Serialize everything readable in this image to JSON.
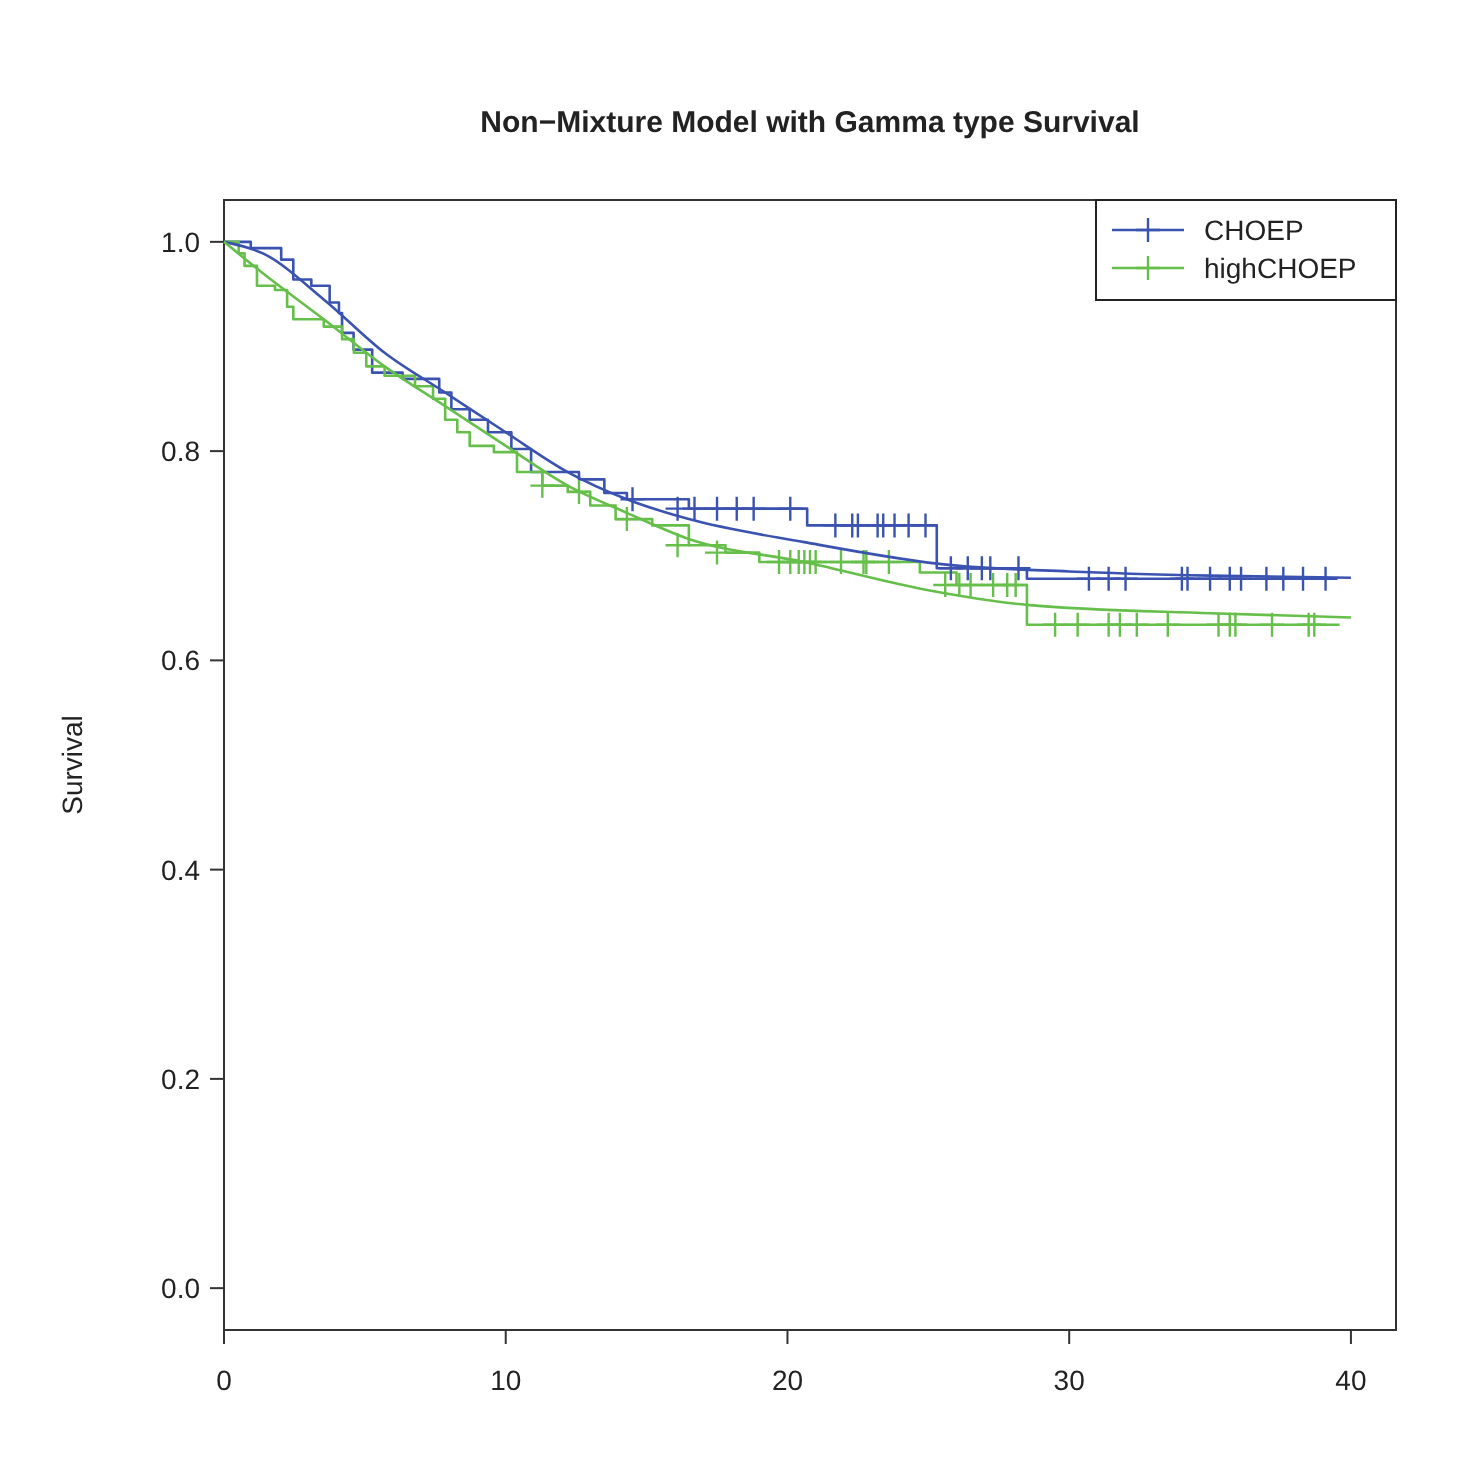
{
  "chart_data": {
    "type": "step",
    "title": "Non−Mixture Model with Gamma type Survival",
    "ylabel": "Survival",
    "xlim": [
      0,
      41.6
    ],
    "xticks": [
      0,
      10,
      20,
      30,
      40
    ],
    "ylim": [
      -0.04,
      1.04
    ],
    "yticks": [
      {
        "value": 0,
        "label": "0.0"
      },
      {
        "value": 0.2,
        "label": "0.2"
      },
      {
        "value": 0.4,
        "label": "0.4"
      },
      {
        "value": 0.6,
        "label": "0.6"
      },
      {
        "value": 0.8,
        "label": "0.8"
      },
      {
        "value": 1,
        "label": "1.0"
      }
    ],
    "legend": "top right",
    "grid": false,
    "series": [
      {
        "name": "CHOEP",
        "color": "#3b53b0",
        "x": [
          0,
          0.95,
          2.03,
          2.46,
          3.1,
          3.75,
          4.08,
          4.19,
          4.6,
          5.26,
          6.34,
          7.64,
          8.07,
          8.72,
          9.37,
          10.2,
          10.9,
          12.6,
          13.5,
          14.3,
          16.5,
          20.7,
          25.3,
          28.5,
          39.4
        ],
        "values": [
          1,
          0.994,
          0.983,
          0.964,
          0.958,
          0.942,
          0.932,
          0.913,
          0.897,
          0.875,
          0.869,
          0.856,
          0.84,
          0.83,
          0.818,
          0.802,
          0.78,
          0.773,
          0.76,
          0.754,
          0.745,
          0.729,
          0.688,
          0.678,
          0.678
        ]
      },
      {
        "name": "highCHOEP",
        "color": "#66bf4a",
        "x": [
          0,
          0.52,
          0.73,
          1.17,
          1.81,
          2.24,
          2.46,
          3.54,
          4.19,
          4.61,
          5.05,
          5.7,
          6.78,
          7.42,
          7.85,
          8.28,
          8.72,
          9.58,
          10.4,
          11.3,
          12.2,
          13.0,
          13.9,
          15.2,
          16.5,
          17.8,
          19,
          24.7,
          26,
          28.5,
          39.6
        ],
        "values": [
          1,
          0.989,
          0.977,
          0.958,
          0.954,
          0.938,
          0.926,
          0.919,
          0.907,
          0.894,
          0.881,
          0.872,
          0.862,
          0.85,
          0.83,
          0.818,
          0.805,
          0.799,
          0.78,
          0.767,
          0.761,
          0.748,
          0.735,
          0.729,
          0.71,
          0.703,
          0.694,
          0.684,
          0.672,
          0.634,
          0.634
        ]
      },
      {
        "type": "scatter",
        "marker": "cross",
        "color": "#3b53b0",
        "x": [
          14.5,
          16.1,
          16.7,
          17.5,
          18.2,
          18.8,
          20.1,
          21.7,
          22.3,
          22.5,
          23.2,
          23.4,
          23.8,
          24.3,
          24.9,
          25.8,
          26.4,
          26.9,
          27.2,
          28.2,
          30.7,
          31.4,
          32.0,
          34.0,
          34.2,
          35.0,
          35.7,
          36.1,
          37.0,
          37.6,
          38.3,
          39.1
        ],
        "values": [
          0.754,
          0.745,
          0.745,
          0.745,
          0.745,
          0.745,
          0.745,
          0.729,
          0.729,
          0.729,
          0.729,
          0.729,
          0.729,
          0.729,
          0.729,
          0.688,
          0.688,
          0.688,
          0.688,
          0.688,
          0.678,
          0.678,
          0.678,
          0.678,
          0.678,
          0.678,
          0.678,
          0.678,
          0.678,
          0.678,
          0.678,
          0.678
        ]
      },
      {
        "type": "scatter",
        "marker": "cross",
        "color": "#66bf4a",
        "x": [
          11.3,
          12.6,
          14.3,
          16.1,
          17.5,
          19.7,
          20.1,
          20.4,
          20.6,
          20.8,
          21.0,
          21.9,
          22.7,
          22.8,
          23.6,
          25.6,
          26.1,
          26.5,
          27.3,
          27.8,
          28.1,
          29.5,
          30.3,
          31.4,
          31.8,
          32.4,
          33.5,
          35.3,
          35.7,
          35.9,
          37.2,
          38.5,
          38.7
        ],
        "values": [
          0.767,
          0.761,
          0.735,
          0.71,
          0.703,
          0.694,
          0.694,
          0.694,
          0.694,
          0.694,
          0.694,
          0.694,
          0.694,
          0.694,
          0.694,
          0.672,
          0.672,
          0.672,
          0.672,
          0.672,
          0.672,
          0.634,
          0.634,
          0.634,
          0.634,
          0.634,
          0.634,
          0.634,
          0.634,
          0.634,
          0.634,
          0.634,
          0.634
        ]
      },
      {
        "type": "line",
        "color": "#3b53b0",
        "x": [
          0,
          1.38,
          3.54,
          5.7,
          7.85,
          10.0,
          12.2,
          14.3,
          16.5,
          20.6,
          25.8,
          30,
          35,
          40
        ],
        "values": [
          1,
          0.989,
          0.945,
          0.894,
          0.856,
          0.818,
          0.78,
          0.754,
          0.735,
          0.713,
          0.691,
          0.685,
          0.681,
          0.679
        ]
      },
      {
        "type": "line",
        "color": "#66bf4a",
        "x": [
          0,
          1.38,
          3.54,
          5.7,
          7.85,
          10.0,
          12.2,
          14.3,
          16.5,
          20.6,
          25,
          28.5,
          35,
          40
        ],
        "values": [
          1,
          0.97,
          0.926,
          0.881,
          0.843,
          0.805,
          0.767,
          0.741,
          0.716,
          0.694,
          0.667,
          0.653,
          0.645,
          0.641
        ]
      }
    ]
  }
}
